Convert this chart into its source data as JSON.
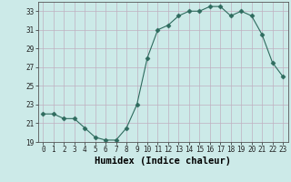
{
  "x": [
    0,
    1,
    2,
    3,
    4,
    5,
    6,
    7,
    8,
    9,
    10,
    11,
    12,
    13,
    14,
    15,
    16,
    17,
    18,
    19,
    20,
    21,
    22,
    23
  ],
  "y": [
    22.0,
    22.0,
    21.5,
    21.5,
    20.5,
    19.5,
    19.2,
    19.2,
    20.5,
    23.0,
    28.0,
    31.0,
    31.5,
    32.5,
    33.0,
    33.0,
    33.5,
    33.5,
    32.5,
    33.0,
    32.5,
    30.5,
    27.5,
    26.0
  ],
  "line_color": "#2e6b5e",
  "marker": "D",
  "marker_size": 2.5,
  "bg_color": "#cceae8",
  "grid_color": "#c0b0c0",
  "xlabel": "Humidex (Indice chaleur)",
  "xlim": [
    -0.5,
    23.5
  ],
  "ylim": [
    19,
    34
  ],
  "yticks": [
    19,
    21,
    23,
    25,
    27,
    29,
    31,
    33
  ],
  "xtick_labels": [
    "0",
    "1",
    "2",
    "3",
    "4",
    "5",
    "6",
    "7",
    "8",
    "9",
    "10",
    "11",
    "12",
    "13",
    "14",
    "15",
    "16",
    "17",
    "18",
    "19",
    "20",
    "21",
    "22",
    "23"
  ],
  "tick_fontsize": 5.5,
  "label_fontsize": 7.5
}
